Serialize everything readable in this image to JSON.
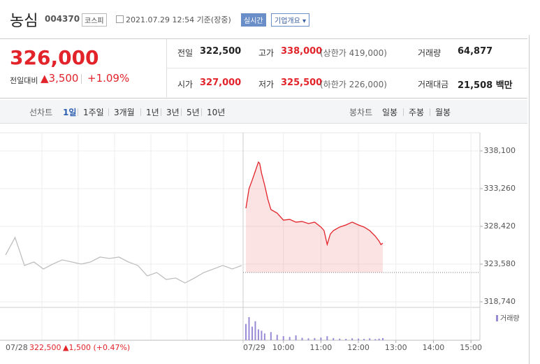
{
  "header": {
    "name": "농심",
    "code": "004370",
    "market": "코스피",
    "timestamp": "2021.07.29 12:54 기준(장중)",
    "realtime": "실시간",
    "company": "기업개요"
  },
  "quote": {
    "price": "326,000",
    "change_label": "전일대비",
    "change": "▲3,500",
    "change_pct": "+1.09%",
    "stats": [
      {
        "label": "전일",
        "value": "322,500",
        "color": "#222222"
      },
      {
        "label": "고가",
        "value": "338,000",
        "note": "(상한가 419,000)",
        "color": "#e2232a"
      },
      {
        "label": "거래량",
        "value": "64,877",
        "color": "#222222"
      },
      {
        "label": "시가",
        "value": "327,000",
        "color": "#e2232a"
      },
      {
        "label": "저가",
        "value": "325,500",
        "note": "(하한가 226,000)",
        "color": "#e2232a"
      },
      {
        "label": "거래대금",
        "value": "21,508 백만",
        "color": "#222222"
      }
    ]
  },
  "tabs": {
    "line_label": "선차트",
    "line_periods": [
      "1일",
      "1주일",
      "3개월",
      "1년",
      "3년",
      "5년",
      "10년"
    ],
    "candle_label": "봉차트",
    "candle_periods": [
      "일봉",
      "주봉",
      "월봉"
    ]
  },
  "chart_data": [
    {
      "type": "line",
      "prev_day": {
        "date": "07/28",
        "close": "322,500",
        "change": "▲1,500 (+0.47%)",
        "color": "#bbbbbb",
        "values": [
          324750,
          326990,
          323400,
          323850,
          322950,
          323580,
          324120,
          323850,
          323580,
          323850,
          324480,
          324300,
          324480,
          323850,
          323400,
          322060,
          322500,
          321610,
          321790,
          321160,
          321790,
          322500,
          322950,
          323400,
          322950,
          323400
        ]
      },
      "today_date": "07/29",
      "series": [
        {
          "color": "#e2232a",
          "x": [
            9,
            9.083,
            9.167,
            9.25,
            9.333,
            9.367,
            9.417,
            9.5,
            9.583,
            9.667,
            9.833,
            10,
            10.167,
            10.333,
            10.5,
            10.667,
            10.833,
            11,
            11.083,
            11.167,
            11.25,
            11.333,
            11.5,
            11.667,
            11.833,
            12,
            12.15,
            12.3,
            12.45,
            12.55,
            12.6,
            12.65
          ],
          "values": [
            330750,
            333260,
            334340,
            335500,
            336670,
            336490,
            335230,
            333710,
            331920,
            330570,
            330120,
            329220,
            329310,
            328960,
            329040,
            328780,
            328960,
            328330,
            327880,
            326090,
            327430,
            327880,
            328330,
            328600,
            328960,
            328600,
            328330,
            327880,
            327160,
            326530,
            326090,
            326270
          ]
        }
      ],
      "baseline": 322500,
      "xlim": [
        8.925,
        15.24
      ],
      "xticks": [
        {
          "value": 10,
          "label": "10:00"
        },
        {
          "value": 11,
          "label": "11:00"
        },
        {
          "value": 12,
          "label": "12:00"
        },
        {
          "value": 13,
          "label": "13:00"
        },
        {
          "value": 14,
          "label": "14:00"
        },
        {
          "value": 15,
          "label": "15:00"
        }
      ],
      "ylim": [
        318020,
        340430
      ],
      "yticks": [
        {
          "value": 338100,
          "label": "338,100"
        },
        {
          "value": 333260,
          "label": "333,260"
        },
        {
          "value": 328420,
          "label": "328,420"
        },
        {
          "value": 323580,
          "label": "323,580"
        },
        {
          "value": 318740,
          "label": "318,740"
        }
      ],
      "grid": true
    },
    {
      "type": "bar",
      "series": [
        {
          "name": "거래량",
          "color": "#9a8ad6",
          "x": [
            9,
            9.083,
            9.167,
            9.25,
            9.333,
            9.417,
            9.5,
            9.667,
            9.833,
            10,
            10.167,
            10.333,
            10.5,
            10.667,
            10.833,
            11,
            11.167,
            11.333,
            11.5,
            11.667,
            11.833,
            12,
            12.15,
            12.3,
            12.45,
            12.55,
            12.65
          ],
          "values": [
            6000,
            8500,
            5000,
            7000,
            4000,
            3500,
            2500,
            3000,
            2000,
            1500,
            1200,
            1800,
            900,
            700,
            800,
            1000,
            1500,
            800,
            600,
            500,
            700,
            600,
            500,
            700,
            400,
            600,
            800
          ]
        }
      ],
      "xlim": [
        8.925,
        15.24
      ],
      "ylim": [
        0,
        10000
      ]
    }
  ]
}
